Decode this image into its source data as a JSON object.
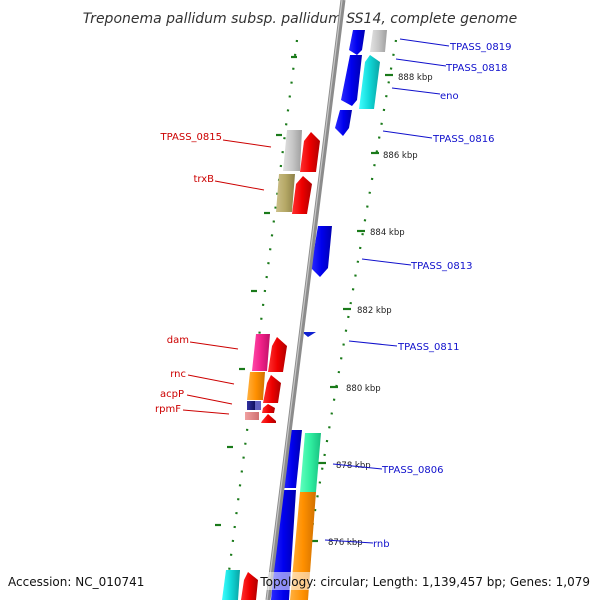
{
  "title": "Treponema pallidum subsp. pallidum SS14, complete genome",
  "accession_text": "Accession: NC_010741",
  "topology_text": "Topology: circular; Length: 1,139,457 bp; Genes: 1,079",
  "colors": {
    "backbone": "#8c8c8c",
    "tick_dash": "#1a7a1a",
    "label_right": "#1010cc",
    "label_left": "#cc0000"
  },
  "ticks": [
    {
      "label": "888 kbp"
    },
    {
      "label": "886 kbp"
    },
    {
      "label": "884 kbp"
    },
    {
      "label": "882 kbp"
    },
    {
      "label": "880 kbp"
    },
    {
      "label": "878 kbp"
    },
    {
      "label": "876 kbp"
    }
  ],
  "genes_right": [
    {
      "name": "TPASS_0819"
    },
    {
      "name": "TPASS_0818"
    },
    {
      "name": "eno"
    },
    {
      "name": "TPASS_0816"
    },
    {
      "name": "TPASS_0813"
    },
    {
      "name": "TPASS_0811"
    },
    {
      "name": "TPASS_0806"
    },
    {
      "name": "rnb"
    }
  ],
  "genes_left": [
    {
      "name": "TPASS_0815"
    },
    {
      "name": "trxB"
    },
    {
      "name": "dam"
    },
    {
      "name": "rnc"
    },
    {
      "name": "acpP"
    },
    {
      "name": "rpmF"
    }
  ]
}
